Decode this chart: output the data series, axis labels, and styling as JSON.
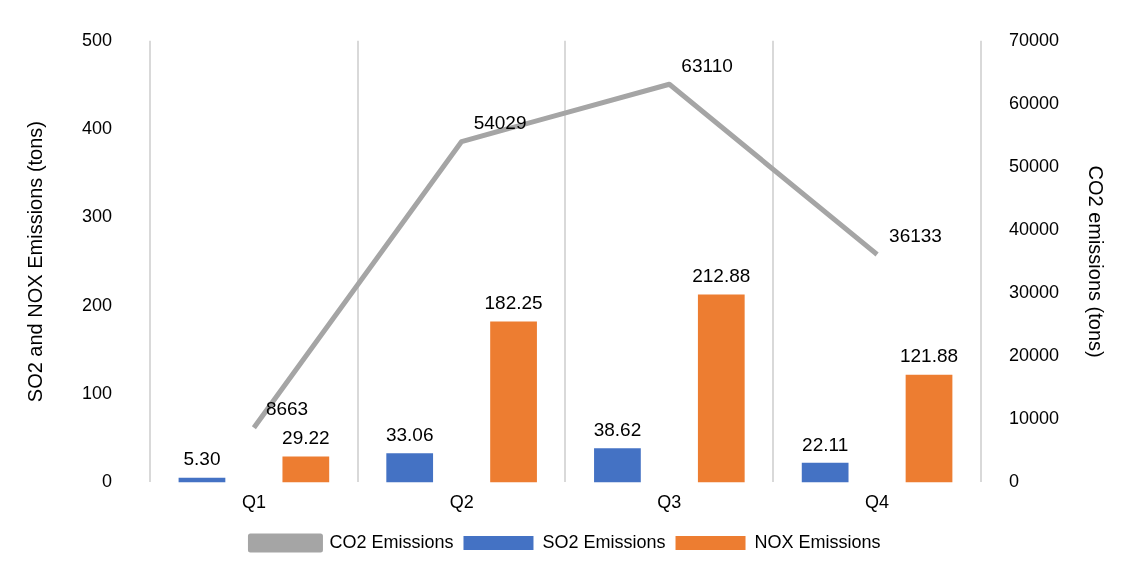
{
  "chart_data": {
    "type": "bar",
    "categories": [
      "Q1",
      "Q2",
      "Q3",
      "Q4"
    ],
    "series": [
      {
        "name": "SO2 Emissions",
        "color": "#4472c4",
        "values": [
          5.3,
          33.06,
          38.62,
          22.11
        ],
        "value_labels": [
          "5.30",
          "33.06",
          "38.62",
          "22.11"
        ]
      },
      {
        "name": "NOX Emissions",
        "color": "#ed7d31",
        "values": [
          29.22,
          182.25,
          212.88,
          121.88
        ],
        "value_labels": [
          "29.22",
          "182.25",
          "212.88",
          "121.88"
        ]
      },
      {
        "name": "CO2 Emissions",
        "type": "line",
        "axis": "y2",
        "color": "#a5a5a5",
        "values": [
          8663,
          54029,
          63110,
          36133
        ],
        "value_labels": [
          "8663",
          "54029",
          "63110",
          "36133"
        ]
      }
    ],
    "ylabel": "SO2 and NOX Emissions (tons)",
    "y2label": "CO2 emissions (tons)",
    "ylim": [
      0,
      500
    ],
    "yticks": [
      0,
      100,
      200,
      300,
      400,
      500
    ],
    "y2lim": [
      0,
      70000
    ],
    "y2ticks": [
      0,
      10000,
      20000,
      30000,
      40000,
      50000,
      60000,
      70000
    ],
    "grid": "x",
    "legend": "bottom",
    "marker": "none"
  }
}
